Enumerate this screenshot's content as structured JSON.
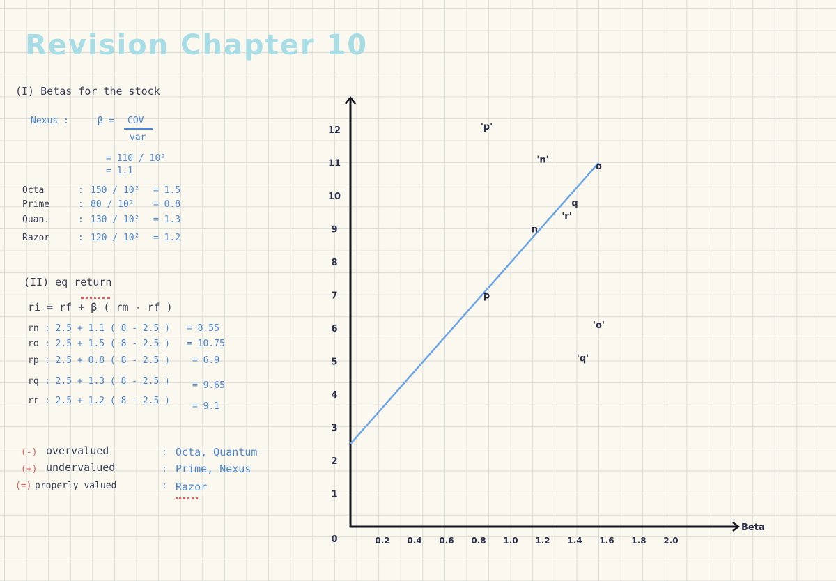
{
  "title": "Revision Chapter 10",
  "section1": {
    "heading": "(I) Betas for the stock",
    "nexus": {
      "label": "Nexus :",
      "beta_eq": "β =",
      "numerator": "COV",
      "denominator": "var",
      "step1": "= 110 / 10²",
      "step2": "= 1.1"
    },
    "rows": [
      {
        "name": "Octa",
        "colon": ":",
        "expr": "150 / 10²",
        "result": "= 1.5"
      },
      {
        "name": "Prime",
        "colon": ":",
        "expr": "80 / 10²",
        "result": "= 0.8"
      },
      {
        "name": "Quan.",
        "colon": ":",
        "expr": "130 / 10²",
        "result": "= 1.3"
      },
      {
        "name": "Razor",
        "colon": ":",
        "expr": "120 / 10²",
        "result": "= 1.2"
      }
    ]
  },
  "section2": {
    "heading": "(II) eq return",
    "formula": "ri = rf + β ( rm - rf )",
    "lines": [
      {
        "lhs": "rn",
        "expr": ": 2.5 + 1.1 ( 8 - 2.5 )",
        "result": "= 8.55"
      },
      {
        "lhs": "ro",
        "expr": ": 2.5 + 1.5 ( 8 - 2.5 )",
        "result": "= 10.75"
      },
      {
        "lhs": "rp",
        "expr": ": 2.5 + 0.8 ( 8 - 2.5 )",
        "result": "= 6.9"
      },
      {
        "lhs": "rq",
        "expr": ": 2.5 + 1.3 ( 8 - 2.5 )",
        "result": "= 9.65"
      },
      {
        "lhs": "rr",
        "expr": ": 2.5 + 1.2 ( 8 - 2.5 )",
        "result": "= 9.1"
      }
    ]
  },
  "section3": {
    "items": [
      {
        "sign": "(-)",
        "label": "overvalued",
        "colon": ":",
        "stocks": "Octa, Quantum"
      },
      {
        "sign": "(+)",
        "label": "undervalued",
        "colon": ":",
        "stocks": "Prime, Nexus"
      },
      {
        "sign": "(=)",
        "label": "properly valued",
        "colon": ":",
        "stocks": "Razor"
      }
    ]
  },
  "chart_data": {
    "type": "scatter",
    "xlabel": "Beta",
    "ylabel": "",
    "x_ticks": [
      "0.2",
      "0.4",
      "0.6",
      "0.8",
      "1.0",
      "1.2",
      "1.4",
      "1.6",
      "1.8",
      "2.0"
    ],
    "y_ticks": [
      "0",
      "1",
      "2",
      "3",
      "4",
      "5",
      "6",
      "7",
      "8",
      "9",
      "10",
      "11",
      "12"
    ],
    "xlim": [
      0,
      2.1
    ],
    "ylim": [
      0,
      12.5
    ],
    "sml_line": {
      "x": [
        0,
        1.55
      ],
      "y": [
        2.5,
        11.0
      ]
    },
    "points": [
      {
        "label": "'p'",
        "x": 0.85,
        "y": 12.0
      },
      {
        "label": "'n'",
        "x": 1.2,
        "y": 11.0
      },
      {
        "label": "o",
        "x": 1.55,
        "y": 10.8
      },
      {
        "label": "q",
        "x": 1.4,
        "y": 9.7
      },
      {
        "label": "'r'",
        "x": 1.35,
        "y": 9.3
      },
      {
        "label": "n",
        "x": 1.15,
        "y": 8.9
      },
      {
        "label": "p",
        "x": 0.85,
        "y": 6.9
      },
      {
        "label": "'o'",
        "x": 1.55,
        "y": 6.0
      },
      {
        "label": "'q'",
        "x": 1.45,
        "y": 5.0
      }
    ],
    "colors": {
      "line": "#6aa3e8",
      "axis": "#151520",
      "points": "#2b2f4a"
    }
  }
}
